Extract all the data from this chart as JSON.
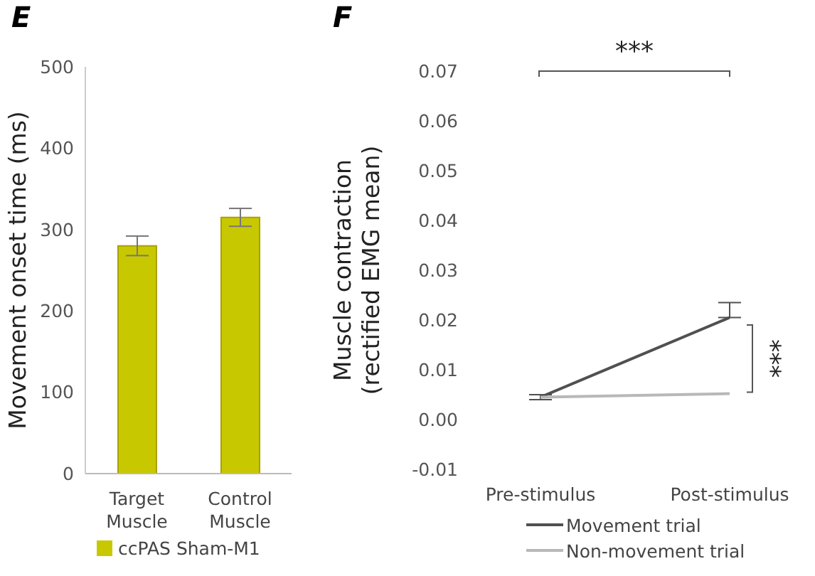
{
  "chart_data": [
    {
      "type": "bar",
      "title": "E",
      "ylabel": "Movement onset time (ms)",
      "categories": [
        "Target\nMuscle",
        "Control\nMuscle"
      ],
      "series": [
        {
          "name": "ccPAS Sham-M1",
          "color": "#c8c800",
          "values": [
            280,
            315
          ],
          "errors": [
            12,
            11
          ]
        }
      ],
      "ylim": [
        0,
        500
      ],
      "yticks": [
        0,
        100,
        200,
        300,
        400,
        500
      ],
      "grid": false,
      "legend": "bottom"
    },
    {
      "type": "line",
      "title": "F",
      "ylabel": "Muscle contraction\n(rectified EMG mean)",
      "categories": [
        "Pre-stimulus",
        "Post-stimulus"
      ],
      "series": [
        {
          "name": "Movement trial",
          "color": "#505050",
          "values": [
            0.0045,
            0.0205
          ],
          "errors": [
            0.0005,
            [
              0.0205,
              0.0235
            ]
          ]
        },
        {
          "name": "Non-movement trial",
          "color": "#b8b8b8",
          "values": [
            0.0045,
            0.0052
          ]
        }
      ],
      "ylim": [
        -0.01,
        0.07
      ],
      "yticks": [
        {
          "value": -0.01,
          "label": "-0.01"
        },
        {
          "value": 0,
          "label": "0.00"
        },
        0.01,
        0.02,
        0.03,
        0.04,
        0.05,
        0.06,
        0.07
      ],
      "grid": false,
      "legend": "bottom",
      "marker": "none",
      "line_style": "solid",
      "annotations": [
        "***",
        "***"
      ]
    }
  ]
}
